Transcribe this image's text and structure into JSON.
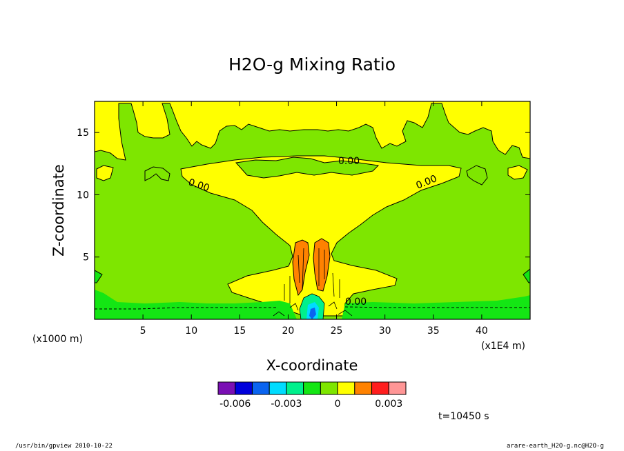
{
  "chart_data": {
    "type": "contour",
    "title": "H2O-g Mixing Ratio",
    "xlabel": "X-coordinate",
    "ylabel": "Z-coordinate",
    "x_unit": "(x1E4 m)",
    "z_unit": "(x1000 m)",
    "xlim": [
      0,
      45
    ],
    "ylim": [
      0,
      17.5
    ],
    "x_ticks": [
      "5",
      "10",
      "15",
      "20",
      "25",
      "30",
      "35",
      "40"
    ],
    "y_ticks": [
      "5",
      "10",
      "15"
    ],
    "contour_labels": [
      "0.00",
      "0.00",
      "0.00",
      "0.00"
    ],
    "colorbar": {
      "levels": [
        -0.007,
        -0.006,
        -0.005,
        -0.004,
        -0.003,
        -0.002,
        -0.001,
        0,
        0.001,
        0.002,
        0.003
      ],
      "tick_labels": [
        "-0.006",
        "-0.003",
        "0",
        "0.003"
      ],
      "colors": [
        "#7a0fb4",
        "#0000dc",
        "#0a64f0",
        "#00dcff",
        "#00f08c",
        "#14e614",
        "#7ee600",
        "#ffff00",
        "#ff8200",
        "#ff1e1e",
        "#ff9696"
      ]
    },
    "grid": false
  },
  "time_label": "t=10450  s",
  "footer": {
    "left": "/usr/bin/gpview  2010-10-22",
    "right": "arare-earth_H2O-g.nc@H2O-g"
  }
}
